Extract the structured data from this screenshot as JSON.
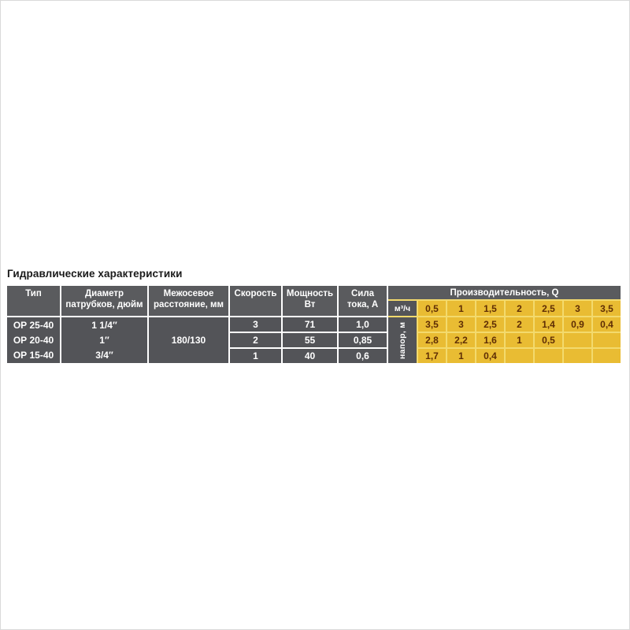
{
  "title": "Гидравлические характеристики",
  "colors": {
    "header_bg": "#5a5b5e",
    "cell_bg": "#535458",
    "yellow_bg": "#e9bc33",
    "yellow_grid": "#f3da6d",
    "yellow_text": "#5e2d05",
    "title_color": "#1a1a1a"
  },
  "table": {
    "columns": {
      "type": "Тип",
      "diameter": "Диаметр\nпатрубков, дюйм",
      "distance": "Межосевое\nрасстояние, мм",
      "speed": "Скорость",
      "power": "Мощность\nВт",
      "current": "Сила\nтока, А"
    },
    "performance": {
      "header": "Производительность, Q",
      "flow_unit": "м³/ч",
      "head_unit": "напор, м",
      "flow_values": [
        "0,5",
        "1",
        "1,5",
        "2",
        "2,5",
        "3",
        "3,5"
      ]
    },
    "types": [
      "ОР 25-40",
      "ОР 20-40",
      "ОР 15-40"
    ],
    "diameters": [
      "1 1/4″",
      "1″",
      "3/4″"
    ],
    "distance_value": "180/130",
    "rows": [
      {
        "speed": "3",
        "power": "71",
        "current": "1,0",
        "head": [
          "3,5",
          "3",
          "2,5",
          "2",
          "1,4",
          "0,9",
          "0,4"
        ]
      },
      {
        "speed": "2",
        "power": "55",
        "current": "0,85",
        "head": [
          "2,8",
          "2,2",
          "1,6",
          "1",
          "0,5",
          "",
          ""
        ]
      },
      {
        "speed": "1",
        "power": "40",
        "current": "0,6",
        "head": [
          "1,7",
          "1",
          "0,4",
          "",
          "",
          "",
          ""
        ]
      }
    ]
  }
}
